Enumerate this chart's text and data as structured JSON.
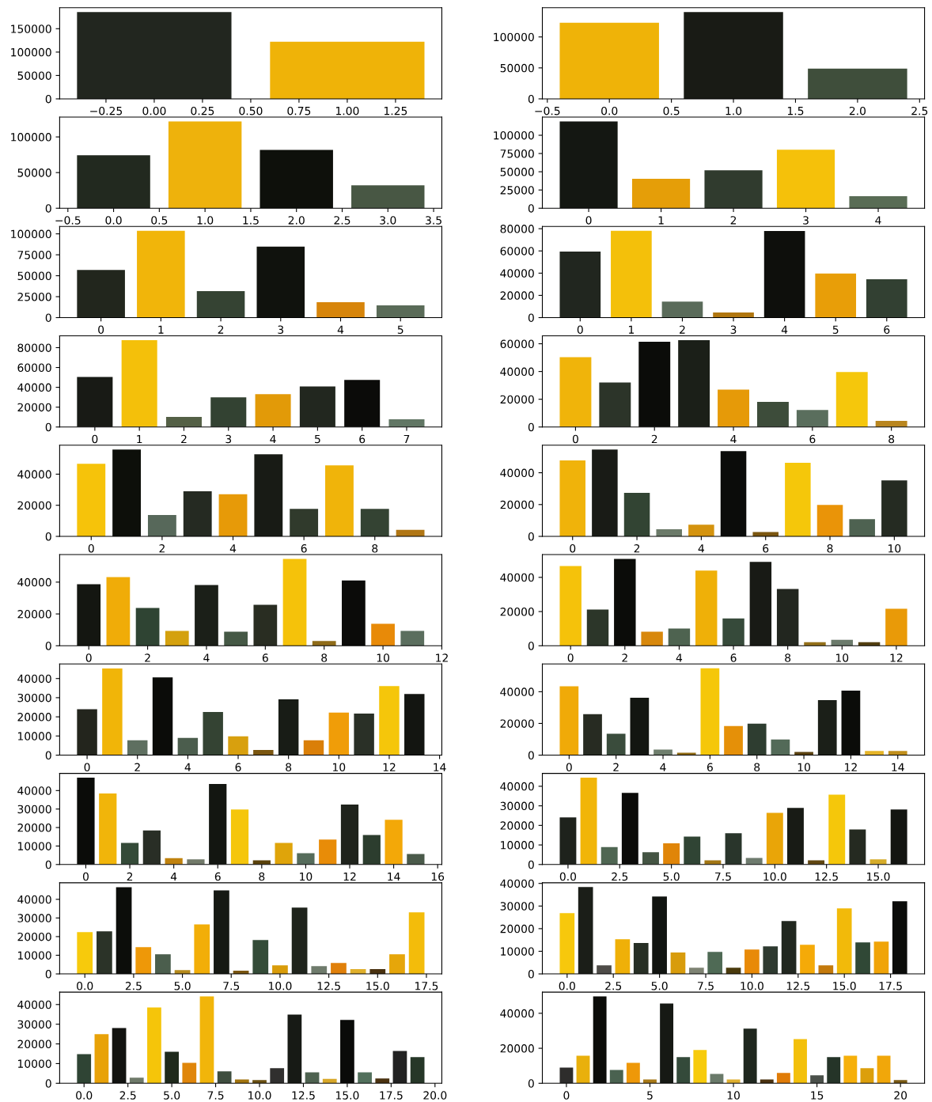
{
  "chart_data": [
    {
      "type": "bar",
      "x": [
        0,
        1
      ],
      "values": [
        185600,
        122000
      ],
      "colors": [
        "#22261f",
        "#efb308"
      ],
      "xlim": [
        -0.49,
        1.49
      ],
      "xticks": [
        {
          "value": -0.25,
          "label": "−0.25"
        },
        {
          "value": 0,
          "label": "0.00"
        },
        {
          "value": 0.25,
          "label": "0.25"
        },
        {
          "value": 0.5,
          "label": "0.50"
        },
        {
          "value": 0.75,
          "label": "0.75"
        },
        {
          "value": 1,
          "label": "1.00"
        },
        {
          "value": 1.25,
          "label": "1.25"
        }
      ],
      "ylim": [
        0,
        194900
      ],
      "yticks": [
        0,
        50000,
        100000,
        150000
      ]
    },
    {
      "type": "bar",
      "x": [
        0,
        1,
        2
      ],
      "values": [
        123000,
        140200,
        48800
      ],
      "colors": [
        "#efb308",
        "#191b15",
        "#3f4e3b"
      ],
      "xlim": [
        -0.54,
        2.54
      ],
      "xticks": [
        {
          "value": -0.5,
          "label": "−0.5"
        },
        {
          "value": 0,
          "label": "0.0"
        },
        {
          "value": 0.5,
          "label": "0.5"
        },
        {
          "value": 1,
          "label": "1.0"
        },
        {
          "value": 1.5,
          "label": "1.5"
        },
        {
          "value": 2,
          "label": "2.0"
        },
        {
          "value": 2.5,
          "label": "2.5"
        }
      ],
      "ylim": [
        0,
        147200
      ],
      "yticks": [
        0,
        50000,
        100000
      ]
    },
    {
      "type": "bar",
      "x": [
        0,
        1,
        2,
        3
      ],
      "values": [
        74200,
        121700,
        81700,
        32100
      ],
      "colors": [
        "#22291f",
        "#eeb20c",
        "#0e100b",
        "#485744"
      ],
      "xlim": [
        -0.59,
        3.59
      ],
      "xticks": [
        {
          "value": -0.5,
          "label": "−0.5"
        },
        {
          "value": 0,
          "label": "0.0"
        },
        {
          "value": 0.5,
          "label": "0.5"
        },
        {
          "value": 1,
          "label": "1.0"
        },
        {
          "value": 1.5,
          "label": "1.5"
        },
        {
          "value": 2,
          "label": "2.0"
        },
        {
          "value": 2.5,
          "label": "2.5"
        },
        {
          "value": 3,
          "label": "3.0"
        },
        {
          "value": 3.5,
          "label": "3.5"
        }
      ],
      "ylim": [
        0,
        127800
      ],
      "yticks": [
        0,
        50000,
        100000
      ]
    },
    {
      "type": "bar",
      "x": [
        0,
        1,
        2,
        3,
        4
      ],
      "values": [
        118950,
        40300,
        52000,
        80200,
        16500
      ],
      "colors": [
        "#141712",
        "#e59e08",
        "#303b2e",
        "#f5c10a",
        "#596c55"
      ],
      "xlim": [
        -0.64,
        4.64
      ],
      "xticks": [
        0,
        1,
        2,
        3,
        4
      ],
      "ylim": [
        0,
        124900
      ],
      "yticks": [
        0,
        25000,
        50000,
        75000,
        100000
      ]
    },
    {
      "type": "bar",
      "x": [
        0,
        1,
        2,
        3,
        4,
        5
      ],
      "values": [
        56900,
        103600,
        31700,
        84700,
        18500,
        14600
      ],
      "colors": [
        "#22261d",
        "#f1b50a",
        "#354333",
        "#10120d",
        "#d7850b",
        "#5a6b58"
      ],
      "xlim": [
        -0.69,
        5.69
      ],
      "xticks": [
        0,
        1,
        2,
        3,
        4,
        5
      ],
      "ylim": [
        0,
        108800
      ],
      "yticks": [
        0,
        25000,
        50000,
        75000,
        100000
      ]
    },
    {
      "type": "bar",
      "x": [
        0,
        1,
        2,
        3,
        4,
        5,
        6
      ],
      "values": [
        59400,
        78100,
        14450,
        4550,
        77900,
        39600,
        34500
      ],
      "colors": [
        "#21261f",
        "#f4c00a",
        "#5a6b5a",
        "#b0760f",
        "#0e0f0c",
        "#e89e08",
        "#324032"
      ],
      "xlim": [
        -0.74,
        6.74
      ],
      "xticks": [
        0,
        1,
        2,
        3,
        4,
        5,
        6
      ],
      "ylim": [
        0,
        82000
      ],
      "yticks": [
        0,
        20000,
        40000,
        60000,
        80000
      ]
    },
    {
      "type": "bar",
      "x": [
        0,
        1,
        2,
        3,
        4,
        5,
        6,
        7
      ],
      "values": [
        50450,
        87500,
        10150,
        29850,
        33100,
        40900,
        47500,
        7750
      ],
      "colors": [
        "#181a15",
        "#f4c00a",
        "#546046",
        "#334232",
        "#e29a08",
        "#22271f",
        "#0b0b09",
        "#617664"
      ],
      "xlim": [
        -0.79,
        7.79
      ],
      "xticks": [
        0,
        1,
        2,
        3,
        4,
        5,
        6,
        7
      ],
      "ylim": [
        0,
        91900
      ],
      "yticks": [
        0,
        20000,
        40000,
        60000,
        80000
      ]
    },
    {
      "type": "bar",
      "x": [
        0,
        1,
        2,
        3,
        4,
        5,
        6,
        7,
        8
      ],
      "values": [
        50300,
        32100,
        61500,
        62600,
        27000,
        18100,
        12300,
        39600,
        4470
      ],
      "colors": [
        "#f0b40a",
        "#2c3429",
        "#0b0c09",
        "#1b1f18",
        "#e69a08",
        "#3d4c3a",
        "#5a6e5d",
        "#f5c70c",
        "#b9861f"
      ],
      "xlim": [
        -0.84,
        8.84
      ],
      "xticks": [
        0,
        2,
        4,
        6,
        8
      ],
      "ylim": [
        0,
        65700
      ],
      "yticks": [
        0,
        20000,
        40000,
        60000
      ]
    },
    {
      "type": "bar",
      "x": [
        0,
        1,
        2,
        3,
        4,
        5,
        6,
        7,
        8,
        9
      ],
      "values": [
        46700,
        55800,
        13700,
        28950,
        27050,
        52750,
        17700,
        45700,
        17700,
        4200
      ],
      "colors": [
        "#f6c30a",
        "#0d0f0a",
        "#57685a",
        "#252a22",
        "#e79a08",
        "#181b15",
        "#303a2c",
        "#f0b40a",
        "#344333",
        "#b07614"
      ],
      "xlim": [
        -0.89,
        9.89
      ],
      "xticks": [
        0,
        2,
        4,
        6,
        8
      ],
      "ylim": [
        0,
        58600
      ],
      "yticks": [
        0,
        20000,
        40000
      ]
    },
    {
      "type": "bar",
      "x": [
        0,
        1,
        2,
        3,
        4,
        5,
        6,
        7,
        8,
        9,
        10
      ],
      "values": [
        47700,
        54600,
        27300,
        4500,
        7300,
        53650,
        2800,
        46200,
        19800,
        10850,
        35150
      ],
      "colors": [
        "#f0b30a",
        "#191b16",
        "#324433",
        "#6b7a69",
        "#d4930e",
        "#0b0c0a",
        "#7b5610",
        "#f5c70a",
        "#ea9408",
        "#4e6251",
        "#252b22"
      ],
      "xlim": [
        -0.94,
        10.94
      ],
      "xticks": [
        0,
        2,
        4,
        6,
        8,
        10
      ],
      "ylim": [
        0,
        57300
      ],
      "yticks": [
        0,
        20000,
        40000
      ]
    },
    {
      "type": "bar",
      "x": [
        0,
        1,
        2,
        3,
        4,
        5,
        6,
        7,
        8,
        9,
        10,
        11
      ],
      "values": [
        38700,
        43200,
        23700,
        9350,
        38150,
        8800,
        25800,
        54600,
        3000,
        41100,
        13850,
        9350
      ],
      "colors": [
        "#141611",
        "#f0ac08",
        "#2f4433",
        "#d4a10e",
        "#1b1f18",
        "#455845",
        "#292d22",
        "#f5c20a",
        "#8f6b18",
        "#0b0b09",
        "#e88a08",
        "#5b6e5e"
      ],
      "xlim": [
        -0.99,
        12.0
      ],
      "xticks": [
        0,
        2,
        4,
        6,
        8,
        10,
        12
      ],
      "ylim": [
        0,
        57300
      ],
      "yticks": [
        0,
        20000,
        40000
      ]
    },
    {
      "type": "bar",
      "x": [
        0,
        1,
        2,
        3,
        4,
        5,
        6,
        7,
        8,
        9,
        10,
        11,
        12
      ],
      "values": [
        46600,
        21200,
        50800,
        8200,
        10100,
        44000,
        16000,
        49000,
        33200,
        2100,
        3500,
        2100,
        21600
      ],
      "colors": [
        "#f5c20a",
        "#2c3629",
        "#0b0c09",
        "#d8880c",
        "#4e6350",
        "#efb008",
        "#364a3a",
        "#181a15",
        "#22261f",
        "#94701a",
        "#6b7a6b",
        "#523f10",
        "#e99a08"
      ],
      "xlim": [
        -1.04,
        13.04
      ],
      "xticks": [
        0,
        2,
        4,
        6,
        8,
        10,
        12
      ],
      "ylim": [
        0,
        53300
      ],
      "yticks": [
        0,
        20000,
        40000
      ]
    },
    {
      "type": "bar",
      "x": [
        0,
        1,
        2,
        3,
        4,
        5,
        6,
        7,
        8,
        9,
        10,
        11,
        12,
        13
      ],
      "values": [
        24000,
        45300,
        7800,
        40600,
        9050,
        22500,
        9850,
        2700,
        29150,
        7800,
        22200,
        21700,
        36100,
        31900
      ],
      "colors": [
        "#23251d",
        "#f1b508",
        "#5e6f60",
        "#0b0c09",
        "#4b5d4d",
        "#344333",
        "#d8a00e",
        "#7a5610",
        "#181c16",
        "#da7f08",
        "#f09d08",
        "#2a3027",
        "#f5c60a",
        "#131511"
      ],
      "xlim": [
        -1.09,
        14.09
      ],
      "xticks": [
        0,
        2,
        4,
        6,
        8,
        10,
        12,
        14
      ],
      "ylim": [
        0,
        47600
      ],
      "yticks": [
        0,
        10000,
        20000,
        30000,
        40000
      ]
    },
    {
      "type": "bar",
      "x": [
        0,
        1,
        2,
        3,
        4,
        5,
        6,
        7,
        8,
        9,
        10,
        11,
        12,
        13,
        14
      ],
      "values": [
        43400,
        25800,
        13450,
        36250,
        3550,
        1500,
        54750,
        18300,
        19800,
        9900,
        2050,
        34750,
        40750,
        2600,
        2600
      ],
      "colors": [
        "#f0aa08",
        "#272b22",
        "#3a4c3c",
        "#131611",
        "#6f7e6d",
        "#8f6a12",
        "#f5c70a",
        "#e59008",
        "#2e3d30",
        "#536a58",
        "#5a4210",
        "#1b1f18",
        "#0b0c09",
        "#e5b428",
        "#c08f1c"
      ],
      "xlim": [
        -1.14,
        15.14
      ],
      "xticks": [
        0,
        2,
        4,
        6,
        8,
        10,
        12,
        14
      ],
      "ylim": [
        0,
        57500
      ],
      "yticks": [
        0,
        20000,
        40000
      ]
    },
    {
      "type": "bar",
      "x": [
        0,
        1,
        2,
        3,
        4,
        5,
        6,
        7,
        8,
        9,
        10,
        11,
        12,
        13,
        14,
        15
      ],
      "values": [
        46950,
        38400,
        11650,
        18450,
        3400,
        2750,
        43550,
        29800,
        2250,
        11650,
        6150,
        13450,
        32400,
        16000,
        24150,
        5650
      ],
      "colors": [
        "#0b0c09",
        "#f1b50a",
        "#344a38",
        "#292e26",
        "#c0820e",
        "#727a6a",
        "#131611",
        "#f5c60c",
        "#5a420a",
        "#dfa40a",
        "#566c5b",
        "#e88c08",
        "#1f231c",
        "#2c3d2e",
        "#f3a808",
        "#4a5a4a"
      ],
      "xlim": [
        -1.19,
        16.19
      ],
      "xticks": [
        0,
        2,
        4,
        6,
        8,
        10,
        12,
        14,
        16
      ],
      "ylim": [
        0,
        49300
      ],
      "yticks": [
        0,
        10000,
        20000,
        30000,
        40000
      ]
    },
    {
      "type": "bar",
      "x": [
        0,
        1,
        2,
        3,
        4,
        5,
        6,
        7,
        8,
        9,
        10,
        11,
        12,
        13,
        14,
        15,
        16
      ],
      "values": [
        24050,
        44400,
        8950,
        36650,
        6250,
        10800,
        14300,
        2150,
        15950,
        3350,
        26450,
        28900,
        2150,
        35750,
        17950,
        2600,
        28150
      ],
      "colors": [
        "#1e221c",
        "#f1b508",
        "#4f6652",
        "#0b0b09",
        "#445443",
        "#e08508",
        "#304434",
        "#a27614",
        "#29352b",
        "#6e7b6e",
        "#e9a508",
        "#181b15",
        "#604610",
        "#f5c70a",
        "#252a21",
        "#d6ac2a",
        "#131511"
      ],
      "xlim": [
        -1.24,
        17.24
      ],
      "xticks": [
        {
          "value": 0,
          "label": "0.0"
        },
        {
          "value": 2.5,
          "label": "2.5"
        },
        {
          "value": 5,
          "label": "5.0"
        },
        {
          "value": 7.5,
          "label": "7.5"
        },
        {
          "value": 10,
          "label": "10.0"
        },
        {
          "value": 12.5,
          "label": "12.5"
        },
        {
          "value": 15,
          "label": "15.0"
        }
      ],
      "ylim": [
        0,
        46600
      ],
      "yticks": [
        0,
        10000,
        20000,
        30000,
        40000
      ]
    },
    {
      "type": "bar",
      "x": [
        0,
        1,
        2,
        3,
        4,
        5,
        6,
        7,
        8,
        9,
        10,
        11,
        12,
        13,
        14,
        15,
        16,
        17
      ],
      "values": [
        22450,
        22800,
        46550,
        14350,
        10500,
        2050,
        26600,
        44800,
        1750,
        18150,
        4600,
        35550,
        4150,
        5900,
        2550,
        2550,
        10500,
        33000
      ],
      "colors": [
        "#f7ca0c",
        "#2b3328",
        "#0c0d0a",
        "#ee9808",
        "#4b5e4d",
        "#b58a1c",
        "#f2ae08",
        "#161913",
        "#7a5610",
        "#344c38",
        "#d99c0a",
        "#1f241c",
        "#6f7b6c",
        "#e0800a",
        "#e0b02c",
        "#4a3210",
        "#e6a60a",
        "#f3bc0a"
      ],
      "xlim": [
        -1.29,
        18.29
      ],
      "xticks": [
        {
          "value": 0,
          "label": "0.0"
        },
        {
          "value": 2.5,
          "label": "2.5"
        },
        {
          "value": 5,
          "label": "5.0"
        },
        {
          "value": 7.5,
          "label": "7.5"
        },
        {
          "value": 10,
          "label": "10.0"
        },
        {
          "value": 12.5,
          "label": "12.5"
        },
        {
          "value": 15,
          "label": "15.0"
        },
        {
          "value": 17.5,
          "label": "17.5"
        }
      ],
      "ylim": [
        0,
        48900
      ],
      "yticks": [
        0,
        10000,
        20000,
        30000,
        40000
      ]
    },
    {
      "type": "bar",
      "x": [
        0,
        1,
        2,
        3,
        4,
        5,
        6,
        7,
        8,
        9,
        10,
        11,
        12,
        13,
        14,
        15,
        16,
        17,
        18
      ],
      "values": [
        26900,
        38400,
        3800,
        15350,
        13650,
        34250,
        9450,
        2750,
        9700,
        2750,
        10750,
        12200,
        23350,
        12850,
        3800,
        29000,
        13900,
        14300,
        32150
      ],
      "colors": [
        "#f7c80c",
        "#1b1e18",
        "#4e4c48",
        "#efb008",
        "#272f25",
        "#111410",
        "#d89c0c",
        "#7e8373",
        "#4f6a55",
        "#4a3a0c",
        "#e88a08",
        "#2e3a30",
        "#21271f",
        "#f5aa08",
        "#c47a0c",
        "#f2ba0a",
        "#304836",
        "#f0a408",
        "#0b0c0a"
      ],
      "xlim": [
        -1.34,
        19.34
      ],
      "xticks": [
        {
          "value": 0,
          "label": "0.0"
        },
        {
          "value": 2.5,
          "label": "2.5"
        },
        {
          "value": 5,
          "label": "5.0"
        },
        {
          "value": 7.5,
          "label": "7.5"
        },
        {
          "value": 10,
          "label": "10.0"
        },
        {
          "value": 12.5,
          "label": "12.5"
        },
        {
          "value": 15,
          "label": "15.0"
        },
        {
          "value": 17.5,
          "label": "17.5"
        }
      ],
      "ylim": [
        0,
        40300
      ],
      "yticks": [
        0,
        10000,
        20000,
        30000,
        40000
      ]
    },
    {
      "type": "bar",
      "x": [
        0,
        1,
        2,
        3,
        4,
        5,
        6,
        7,
        8,
        9,
        10,
        11,
        12,
        13,
        14,
        15,
        16,
        17,
        18,
        19
      ],
      "values": [
        14800,
        24900,
        28100,
        2850,
        38500,
        16000,
        10400,
        44100,
        6050,
        1950,
        1650,
        7700,
        34850,
        5600,
        2250,
        32150,
        5600,
        2400,
        16450,
        13300
      ],
      "colors": [
        "#2f4434",
        "#e8a208",
        "#121310",
        "#6f7a6a",
        "#f5c50a",
        "#1f2a1c",
        "#e0860a",
        "#f1b50a",
        "#3f4e3f",
        "#a2740f",
        "#6a5012",
        "#302f2e",
        "#171a15",
        "#4e6250",
        "#d8a82a",
        "#0a0b09",
        "#52705c",
        "#4a3210",
        "#222222",
        "#263728"
      ],
      "xlim": [
        -1.39,
        20.39
      ],
      "xticks": [
        {
          "value": 0,
          "label": "0.0"
        },
        {
          "value": 2.5,
          "label": "2.5"
        },
        {
          "value": 5,
          "label": "5.0"
        },
        {
          "value": 7.5,
          "label": "7.5"
        },
        {
          "value": 10,
          "label": "10.0"
        },
        {
          "value": 12.5,
          "label": "12.5"
        },
        {
          "value": 15,
          "label": "15.0"
        },
        {
          "value": 17.5,
          "label": "17.5"
        },
        {
          "value": 20,
          "label": "20.0"
        }
      ],
      "ylim": [
        0,
        46300
      ],
      "yticks": [
        0,
        10000,
        20000,
        30000,
        40000
      ]
    },
    {
      "type": "bar",
      "x": [
        0,
        1,
        2,
        3,
        4,
        5,
        6,
        7,
        8,
        9,
        10,
        11,
        12,
        13,
        14,
        15,
        16,
        17,
        18,
        19,
        20
      ],
      "values": [
        9000,
        15750,
        49650,
        7600,
        11700,
        2200,
        45600,
        14900,
        19000,
        5400,
        2200,
        31200,
        2200,
        5950,
        25250,
        4600,
        14900,
        15750,
        8650,
        15750,
        1850
      ],
      "colors": [
        "#2e2d2c",
        "#e9b00c",
        "#0b0c09",
        "#4a6250",
        "#ee9808",
        "#a87a18",
        "#161914",
        "#344a3a",
        "#f7cb0c",
        "#6a7a6a",
        "#e0b030",
        "#1f271e",
        "#4a3210",
        "#e07c08",
        "#f3c00a",
        "#4a504a",
        "#253428",
        "#f6b00a",
        "#dc9f0c",
        "#f1a70a",
        "#7a5a14"
      ],
      "xlim": [
        -1.44,
        21.44
      ],
      "xticks": [
        0,
        5,
        10,
        15,
        20
      ],
      "ylim": [
        0,
        52100
      ],
      "yticks": [
        0,
        20000,
        40000
      ]
    }
  ]
}
